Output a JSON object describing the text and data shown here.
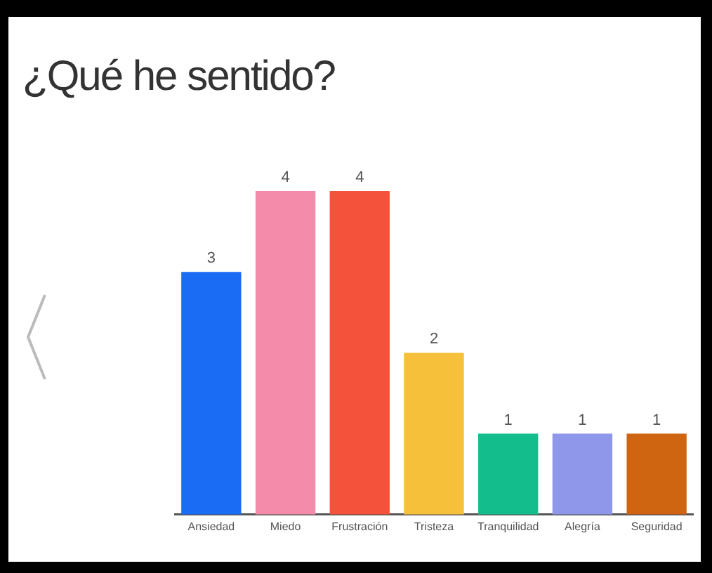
{
  "chart_data": {
    "type": "bar",
    "title": "¿Qué he sentido?",
    "categories": [
      "Ansiedad",
      "Miedo",
      "Frustración",
      "Tristeza",
      "Tranquilidad",
      "Alegría",
      "Seguridad"
    ],
    "values": [
      3,
      4,
      4,
      2,
      1,
      1,
      1
    ],
    "colors": [
      "#1a6cf5",
      "#f48bab",
      "#f4523a",
      "#f7c03a",
      "#14bd8c",
      "#8f97ea",
      "#cf6411"
    ],
    "data_labels": true,
    "grid": false,
    "legend": false
  }
}
